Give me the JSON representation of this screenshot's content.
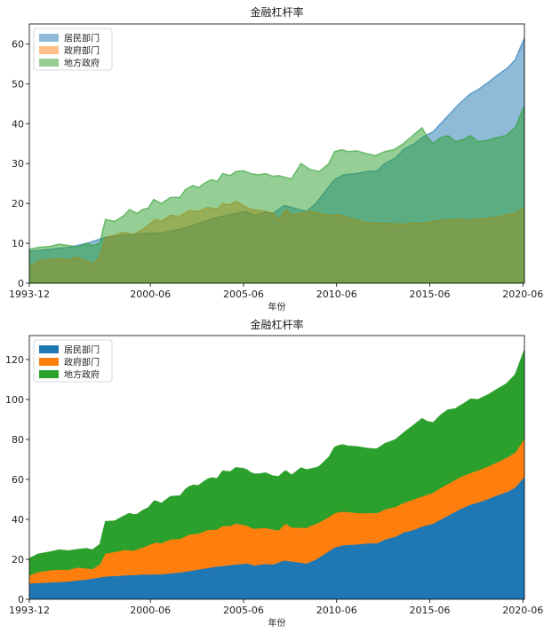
{
  "chart_data": [
    {
      "type": "area",
      "stacked": false,
      "title": "金融杠杆率",
      "xlabel": "年份",
      "ylabel": "",
      "x_start": 1993.917,
      "x_end": 2020.5,
      "ylim": [
        0,
        65
      ],
      "yticks": [
        0,
        10,
        20,
        30,
        40,
        50,
        60
      ],
      "xticks": [
        {
          "label": "1993-12",
          "x": 1993.917
        },
        {
          "label": "2000-06",
          "x": 2000.417
        },
        {
          "label": "2005-06",
          "x": 2005.417
        },
        {
          "label": "2010-06",
          "x": 2010.417
        },
        {
          "label": "2015-06",
          "x": 2015.417
        },
        {
          "label": "2020-06",
          "x": 2020.417
        }
      ],
      "legend": [
        "居民部门",
        "政府部门",
        "地方政府"
      ],
      "legend_position": "top-left",
      "alpha": 0.5,
      "colors": [
        "#1f77b4",
        "#ff7f0e",
        "#2ca02c"
      ],
      "series": [
        {
          "name": "居民部门",
          "points": [
            [
              1993.917,
              8
            ],
            [
              1995,
              8.5
            ],
            [
              1996,
              9
            ],
            [
              1997,
              10
            ],
            [
              1998,
              11.5
            ],
            [
              1999,
              12
            ],
            [
              2000,
              12.5
            ],
            [
              2001,
              12.6
            ],
            [
              2002,
              13.5
            ],
            [
              2003,
              15
            ],
            [
              2004,
              16.5
            ],
            [
              2005,
              17.5
            ],
            [
              2005.6,
              18
            ],
            [
              2006,
              17
            ],
            [
              2006.6,
              17.8
            ],
            [
              2007,
              17.5
            ],
            [
              2007.6,
              19.5
            ],
            [
              2008,
              19
            ],
            [
              2008.8,
              18
            ],
            [
              2009.3,
              20
            ],
            [
              2009.8,
              23
            ],
            [
              2010.3,
              26
            ],
            [
              2010.8,
              27.2
            ],
            [
              2011.5,
              27.5
            ],
            [
              2012,
              28
            ],
            [
              2012.6,
              28.2
            ],
            [
              2013,
              30
            ],
            [
              2013.6,
              31.5
            ],
            [
              2014,
              33.5
            ],
            [
              2014.6,
              35
            ],
            [
              2015,
              36.5
            ],
            [
              2015.6,
              38
            ],
            [
              2016,
              40
            ],
            [
              2016.6,
              43
            ],
            [
              2017,
              45
            ],
            [
              2017.6,
              47.5
            ],
            [
              2018,
              48.5
            ],
            [
              2018.6,
              50.5
            ],
            [
              2019,
              52
            ],
            [
              2019.6,
              54
            ],
            [
              2020,
              56
            ],
            [
              2020.5,
              61.5
            ]
          ]
        },
        {
          "name": "政府部门",
          "points": [
            [
              1993.917,
              4
            ],
            [
              1994.4,
              5.5
            ],
            [
              1995,
              6
            ],
            [
              1995.5,
              6.2
            ],
            [
              1996,
              5.8
            ],
            [
              1996.5,
              6.5
            ],
            [
              1997,
              5.5
            ],
            [
              1997.3,
              4.8
            ],
            [
              1997.7,
              6.5
            ],
            [
              1998,
              11.5
            ],
            [
              1998.5,
              12
            ],
            [
              1999,
              12.8
            ],
            [
              1999.5,
              12.2
            ],
            [
              2000,
              13.5
            ],
            [
              2000.3,
              14.5
            ],
            [
              2000.7,
              16
            ],
            [
              2001,
              15.5
            ],
            [
              2001.5,
              17
            ],
            [
              2002,
              16.8
            ],
            [
              2002.5,
              18.2
            ],
            [
              2003,
              18
            ],
            [
              2003.5,
              19
            ],
            [
              2004,
              18.5
            ],
            [
              2004.3,
              20
            ],
            [
              2004.7,
              19.6
            ],
            [
              2005,
              20.5
            ],
            [
              2005.4,
              19.5
            ],
            [
              2005.8,
              18.5
            ],
            [
              2006.2,
              18.3
            ],
            [
              2006.6,
              18
            ],
            [
              2007,
              17.5
            ],
            [
              2007.3,
              16
            ],
            [
              2007.7,
              18.5
            ],
            [
              2008,
              17
            ],
            [
              2008.5,
              17.5
            ],
            [
              2009,
              18
            ],
            [
              2009.5,
              17.5
            ],
            [
              2010,
              17
            ],
            [
              2010.5,
              17.2
            ],
            [
              2011,
              16.5
            ],
            [
              2011.5,
              15.8
            ],
            [
              2012,
              15.2
            ],
            [
              2013,
              15
            ],
            [
              2014,
              14.8
            ],
            [
              2014.6,
              15.2
            ],
            [
              2015,
              15
            ],
            [
              2015.6,
              15.5
            ],
            [
              2016,
              15.8
            ],
            [
              2017,
              16
            ],
            [
              2017.5,
              15.8
            ],
            [
              2018,
              16
            ],
            [
              2019,
              16.5
            ],
            [
              2019.6,
              17.2
            ],
            [
              2020,
              17.5
            ],
            [
              2020.5,
              19
            ]
          ]
        },
        {
          "name": "地方政府",
          "points": [
            [
              1993.917,
              8.5
            ],
            [
              1994.4,
              9
            ],
            [
              1995,
              9.2
            ],
            [
              1995.5,
              9.8
            ],
            [
              1996,
              9.5
            ],
            [
              1996.5,
              9
            ],
            [
              1997,
              10
            ],
            [
              1997.3,
              9.5
            ],
            [
              1997.7,
              10
            ],
            [
              1998,
              16
            ],
            [
              1998.5,
              15.5
            ],
            [
              1999,
              17
            ],
            [
              1999.3,
              18.5
            ],
            [
              1999.7,
              17.5
            ],
            [
              2000,
              18.5
            ],
            [
              2000.3,
              18.8
            ],
            [
              2000.6,
              21
            ],
            [
              2001,
              20
            ],
            [
              2001.5,
              21.5
            ],
            [
              2002,
              21.5
            ],
            [
              2002.3,
              23.5
            ],
            [
              2002.7,
              24.5
            ],
            [
              2003,
              24
            ],
            [
              2003.3,
              25
            ],
            [
              2003.7,
              26
            ],
            [
              2004,
              25.5
            ],
            [
              2004.3,
              27.5
            ],
            [
              2004.7,
              27
            ],
            [
              2005,
              28
            ],
            [
              2005.4,
              28.2
            ],
            [
              2005.8,
              27.5
            ],
            [
              2006.2,
              27.2
            ],
            [
              2006.6,
              27.5
            ],
            [
              2007,
              26.8
            ],
            [
              2007.3,
              27
            ],
            [
              2007.7,
              26.5
            ],
            [
              2008,
              26.2
            ],
            [
              2008.5,
              30
            ],
            [
              2009,
              28.5
            ],
            [
              2009.5,
              28
            ],
            [
              2010,
              30
            ],
            [
              2010.3,
              33
            ],
            [
              2010.7,
              33.5
            ],
            [
              2011,
              33
            ],
            [
              2011.5,
              33.2
            ],
            [
              2012,
              32.5
            ],
            [
              2012.5,
              32
            ],
            [
              2013,
              33
            ],
            [
              2013.5,
              33.5
            ],
            [
              2014,
              35
            ],
            [
              2014.5,
              37
            ],
            [
              2015,
              39
            ],
            [
              2015.3,
              36.5
            ],
            [
              2015.6,
              35
            ],
            [
              2016,
              36.5
            ],
            [
              2016.4,
              37
            ],
            [
              2016.8,
              35.5
            ],
            [
              2017.2,
              36
            ],
            [
              2017.6,
              37
            ],
            [
              2018,
              35.5
            ],
            [
              2018.5,
              35.8
            ],
            [
              2019,
              36.5
            ],
            [
              2019.5,
              37
            ],
            [
              2020,
              39
            ],
            [
              2020.5,
              44.5
            ]
          ]
        }
      ]
    },
    {
      "type": "area",
      "stacked": true,
      "title": "金融杠杆率",
      "xlabel": "年份",
      "ylabel": "",
      "x_start": 1993.917,
      "x_end": 2020.5,
      "ylim": [
        0,
        132
      ],
      "yticks": [
        0,
        20,
        40,
        60,
        80,
        100,
        120
      ],
      "xticks": [
        {
          "label": "1993-12",
          "x": 1993.917
        },
        {
          "label": "2000-06",
          "x": 2000.417
        },
        {
          "label": "2005-06",
          "x": 2005.417
        },
        {
          "label": "2010-06",
          "x": 2010.417
        },
        {
          "label": "2015-06",
          "x": 2015.417
        },
        {
          "label": "2020-06",
          "x": 2020.417
        }
      ],
      "legend": [
        "居民部门",
        "政府部门",
        "地方政府"
      ],
      "legend_position": "top-left",
      "alpha": 1,
      "colors": [
        "#1f77b4",
        "#ff7f0e",
        "#2ca02c"
      ],
      "series_ref": "same values as chart 1, stacked"
    }
  ]
}
